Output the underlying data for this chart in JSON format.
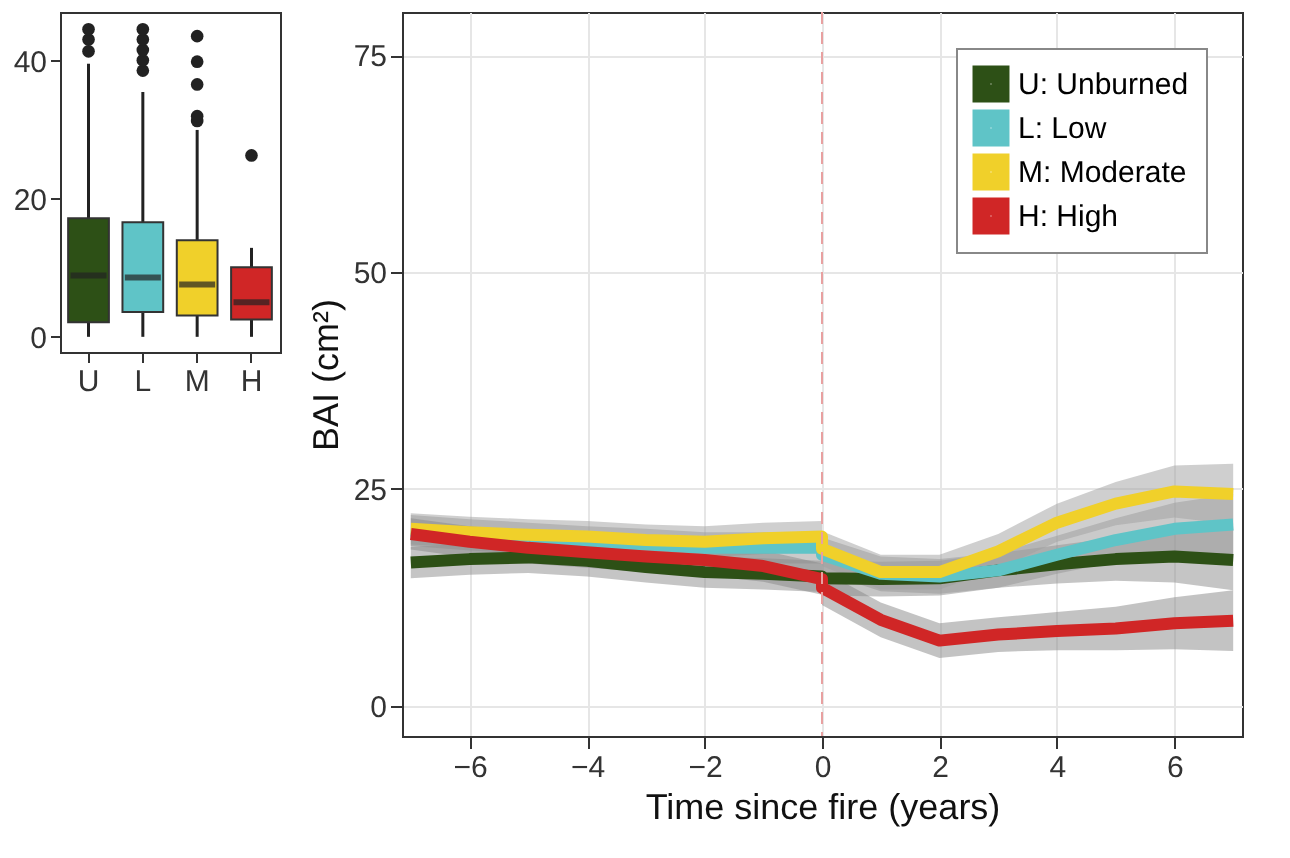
{
  "chart_data": [
    {
      "type": "line",
      "xlabel": "Time since fire (years)",
      "ylabel": "BAI (cm²)",
      "xlim": [
        -7.15,
        7.15
      ],
      "xticks": [
        -6,
        -4,
        -2,
        0,
        2,
        4,
        6
      ],
      "ylim": [
        -3.5,
        80
      ],
      "yticks": [
        0,
        25,
        50,
        75
      ],
      "grid": true,
      "legend": "top right",
      "ref_lines": [
        {
          "axis": "x",
          "value": 0,
          "color": "#e8a0a0",
          "line_style": "dashed"
        }
      ],
      "series": [
        {
          "name": "U: Unburned",
          "color": "#2d5016",
          "x": [
            -7,
            -6,
            -5,
            -4,
            -3,
            -2,
            -1,
            0,
            0,
            1,
            2,
            3,
            4,
            5,
            6,
            7
          ],
          "values": [
            16.5,
            16.9,
            17.1,
            16.7,
            16,
            15.4,
            15.2,
            14.9,
            14.7,
            14.6,
            14.7,
            15.6,
            16.3,
            16.9,
            17.2,
            16.8
          ],
          "lower": [
            14.7,
            15.1,
            15.3,
            14.9,
            14.2,
            13.6,
            13.4,
            13.1,
            12.7,
            12.6,
            12.7,
            13.6,
            14.1,
            14.4,
            14.2,
            13.3
          ],
          "upper": [
            18.3,
            18.7,
            18.9,
            18.5,
            17.8,
            17.2,
            17.0,
            16.7,
            16.7,
            16.6,
            16.7,
            17.6,
            18.5,
            19.4,
            20.2,
            20.3
          ]
        },
        {
          "name": "L:  Low",
          "color": "#5fc4c7",
          "x": [
            -7,
            -6,
            -5,
            -4,
            -3,
            -2,
            -1,
            0,
            0,
            1,
            2,
            3,
            4,
            5,
            6,
            7
          ],
          "values": [
            20.2,
            19.7,
            19.3,
            18.9,
            18.6,
            18.2,
            18.2,
            18.2,
            17.4,
            15.2,
            14.9,
            15.6,
            17.4,
            19.1,
            20.4,
            20.9
          ],
          "lower": [
            18.4,
            17.9,
            17.5,
            17.1,
            16.8,
            16.4,
            16.4,
            16.4,
            15.4,
            13.2,
            12.9,
            13.6,
            15.2,
            16.6,
            17.4,
            17.4
          ],
          "upper": [
            22.0,
            21.5,
            21.1,
            20.7,
            20.4,
            20.0,
            20.0,
            20.0,
            19.4,
            17.2,
            16.9,
            17.6,
            19.6,
            21.6,
            23.4,
            24.4
          ]
        },
        {
          "name": "M: Moderate",
          "color": "#f0d02a",
          "x": [
            -7,
            -6,
            -5,
            -4,
            -3,
            -2,
            -1,
            0,
            0,
            1,
            2,
            3,
            4,
            5,
            6,
            7
          ],
          "values": [
            20.4,
            20,
            19.7,
            19.5,
            19.1,
            18.9,
            19.3,
            19.5,
            18.1,
            15.4,
            15.4,
            17.8,
            21.1,
            23.3,
            24.7,
            24.4
          ],
          "lower": [
            18.6,
            18.2,
            17.9,
            17.7,
            17.3,
            17.1,
            17.5,
            17.7,
            16.1,
            13.4,
            13.4,
            15.8,
            18.9,
            20.8,
            21.7,
            20.9
          ],
          "upper": [
            22.2,
            21.8,
            21.5,
            21.3,
            20.9,
            20.7,
            21.1,
            21.3,
            20.1,
            17.4,
            17.4,
            19.8,
            23.3,
            25.8,
            27.7,
            27.9
          ]
        },
        {
          "name": "H: High",
          "color": "#d02626",
          "x": [
            -7,
            -6,
            -5,
            -4,
            -3,
            -2,
            -1,
            0,
            0,
            1,
            2,
            3,
            4,
            5,
            6,
            7
          ],
          "values": [
            19.8,
            18.9,
            18.2,
            17.7,
            17.2,
            16.8,
            16.1,
            14.6,
            13.6,
            9.9,
            7.5,
            8.2,
            8.6,
            8.9,
            9.5,
            9.8
          ],
          "lower": [
            18.0,
            17.1,
            16.4,
            15.9,
            15.4,
            15.0,
            14.3,
            12.8,
            11.6,
            7.9,
            5.5,
            6.2,
            6.4,
            6.4,
            6.5,
            6.3
          ],
          "upper": [
            21.6,
            20.7,
            20.0,
            19.5,
            19.0,
            18.6,
            17.9,
            16.4,
            15.6,
            11.9,
            9.5,
            10.2,
            10.8,
            11.4,
            12.5,
            13.3
          ]
        }
      ]
    },
    {
      "type": "box",
      "categories": [
        "U",
        "L",
        "M",
        "H"
      ],
      "colors": [
        "#2d5016",
        "#5fc4c7",
        "#f0d02a",
        "#d02626"
      ],
      "ylim": [
        -2.2,
        47.1
      ],
      "yticks": [
        0,
        20,
        40
      ],
      "boxes": [
        {
          "low": 0,
          "q1": 2.1,
          "median": 8.9,
          "q3": 17.2,
          "high": 39.6,
          "outliers": [
            41.4,
            43.1,
            44.6
          ]
        },
        {
          "low": 0,
          "q1": 3.6,
          "median": 8.6,
          "q3": 16.6,
          "high": 35.5,
          "outliers": [
            38.6,
            40.1,
            41.6,
            43.1,
            44.6
          ]
        },
        {
          "low": 0,
          "q1": 3.1,
          "median": 7.6,
          "q3": 14.0,
          "high": 30.0,
          "outliers": [
            31.3,
            32.0,
            36.6,
            39.9,
            43.6
          ]
        },
        {
          "low": 0,
          "q1": 2.5,
          "median": 5.0,
          "q3": 10.1,
          "high": 12.9,
          "outliers": [
            26.3
          ]
        }
      ]
    }
  ]
}
